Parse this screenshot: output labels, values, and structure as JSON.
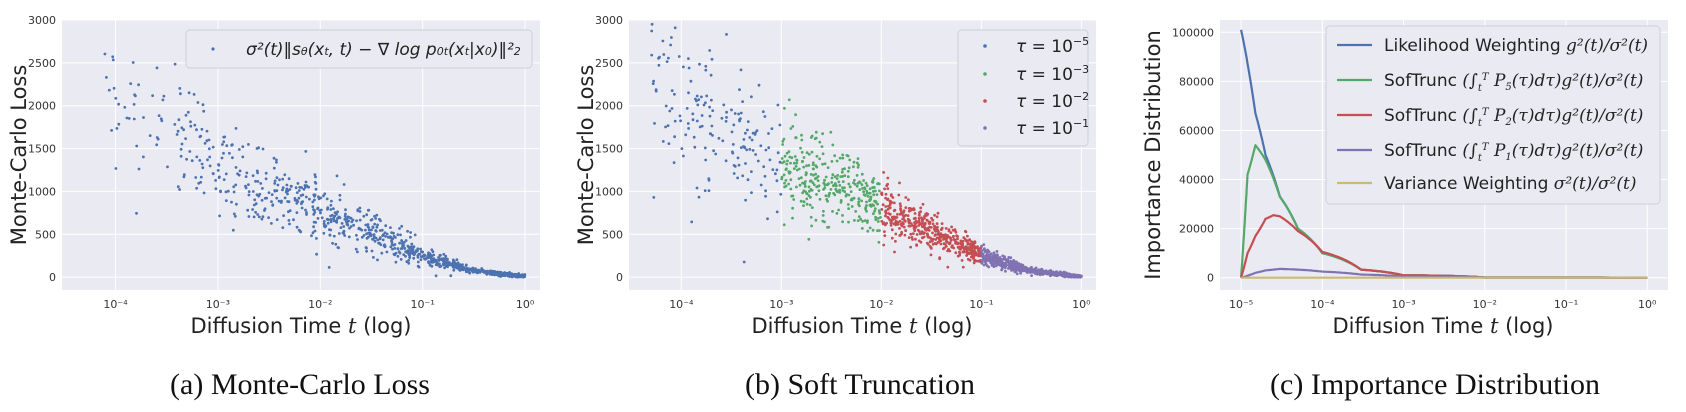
{
  "captions": [
    "(a) Monte-Carlo Loss",
    "(b) Soft Truncation",
    "(c) Importance Distribution"
  ],
  "chart_data": [
    {
      "type": "scatter",
      "xlabel": "Diffusion Time t (log)",
      "ylabel": "Monte-Carlo Loss",
      "xscale": "log",
      "xlim": [
        3e-05,
        1.4
      ],
      "ylim": [
        -150,
        3000
      ],
      "yticks": [
        0,
        500,
        1000,
        1500,
        2000,
        2500,
        3000
      ],
      "xticks": [
        "10^-4",
        "10^-3",
        "10^-2",
        "10^-1",
        "10^0"
      ],
      "grid": true,
      "legend": {
        "placement": "top-right",
        "entries": [
          "σ²(t)‖s_θ(x_t,t) − ∇ log p_0t(x_t|x_0)‖²₂"
        ]
      },
      "trend": {
        "x": [
          5e-05,
          0.0001,
          0.001,
          0.01,
          0.1,
          0.3,
          1.0
        ],
        "y": [
          2400,
          2050,
          1300,
          800,
          250,
          80,
          5
        ]
      },
      "series": [
        {
          "x_range": [
            5e-05,
            1.0
          ],
          "color": "#4c72b0"
        }
      ]
    },
    {
      "type": "scatter",
      "xlabel": "Diffusion Time t (log)",
      "ylabel": "Monte-Carlo Loss",
      "xscale": "log",
      "xlim": [
        3e-05,
        1.4
      ],
      "ylim": [
        -150,
        3000
      ],
      "yticks": [
        0,
        500,
        1000,
        1500,
        2000,
        2500,
        3000
      ],
      "xticks": [
        "10^-4",
        "10^-3",
        "10^-2",
        "10^-1",
        "10^0"
      ],
      "grid": true,
      "legend": {
        "placement": "top-right"
      },
      "trend": {
        "x": [
          5e-05,
          0.0001,
          0.001,
          0.01,
          0.1,
          0.3,
          1.0
        ],
        "y": [
          2400,
          2050,
          1300,
          800,
          250,
          80,
          5
        ]
      },
      "series": [
        {
          "name": "τ = 10^-5",
          "x_range": [
            5e-05,
            0.001
          ],
          "color": "#4c72b0"
        },
        {
          "name": "τ = 10^-3",
          "x_range": [
            0.001,
            0.01
          ],
          "color": "#55a868"
        },
        {
          "name": "τ = 10^-2",
          "x_range": [
            0.01,
            0.1
          ],
          "color": "#c44e52"
        },
        {
          "name": "τ = 10^-1",
          "x_range": [
            0.1,
            1.0
          ],
          "color": "#8172b2"
        }
      ]
    },
    {
      "type": "line",
      "xlabel": "Diffusion Time t (log)",
      "ylabel": "Importance Distribution",
      "xscale": "log",
      "xlim": [
        5.5e-06,
        1.8
      ],
      "ylim": [
        -5000,
        105000
      ],
      "yticks": [
        0,
        20000,
        40000,
        60000,
        80000,
        100000
      ],
      "xticks": [
        "10^-5",
        "10^-4",
        "10^-3",
        "10^-2",
        "10^-1",
        "10^0"
      ],
      "grid": true,
      "legend": {
        "placement": "top-right"
      },
      "series": [
        {
          "name": "Likelihood Weighting g²(t)/σ²(t)",
          "color": "#4c72b0",
          "x": [
            1e-05,
            1.5e-05,
            2e-05,
            3e-05,
            5e-05,
            0.0001,
            0.0003,
            0.001,
            0.01,
            1.0
          ],
          "y": [
            101000,
            67000,
            50000,
            33000,
            20000,
            10000,
            3300,
            1000,
            100,
            0
          ]
        },
        {
          "name": "SofTrunc (∫_t^T P₅(τ)dτ)g²(t)/σ²(t)",
          "color": "#55a868",
          "x": [
            1e-05,
            1.2e-05,
            1.5e-05,
            2e-05,
            3e-05,
            5e-05,
            0.0001,
            0.0003,
            0.001,
            0.01,
            1.0
          ],
          "y": [
            0,
            42000,
            54000,
            48000,
            33000,
            20000,
            10000,
            3300,
            1000,
            100,
            0
          ]
        },
        {
          "name": "SofTrunc (∫_t^T P₂(τ)dτ)g²(t)/σ²(t)",
          "color": "#c44e52",
          "x": [
            1e-05,
            1.2e-05,
            1.5e-05,
            2e-05,
            2.5e-05,
            3e-05,
            5e-05,
            0.0001,
            0.0003,
            0.001,
            0.01,
            1.0
          ],
          "y": [
            0,
            10000,
            17000,
            24000,
            25500,
            25000,
            19000,
            10500,
            3300,
            1000,
            100,
            0
          ]
        },
        {
          "name": "SofTrunc (∫_t^T P₁(τ)dτ)g²(t)/σ²(t)",
          "color": "#8172b2",
          "x": [
            1e-05,
            1.5e-05,
            2e-05,
            3e-05,
            5e-05,
            0.0001,
            0.0003,
            0.001,
            0.01,
            1.0
          ],
          "y": [
            0,
            2000,
            3000,
            3600,
            3300,
            2500,
            1300,
            500,
            60,
            0
          ]
        },
        {
          "name": "Variance Weighting σ²(t)/σ²(t)",
          "color": "#ccb974",
          "x": [
            1e-05,
            1.0
          ],
          "y": [
            1,
            1
          ]
        }
      ]
    }
  ]
}
